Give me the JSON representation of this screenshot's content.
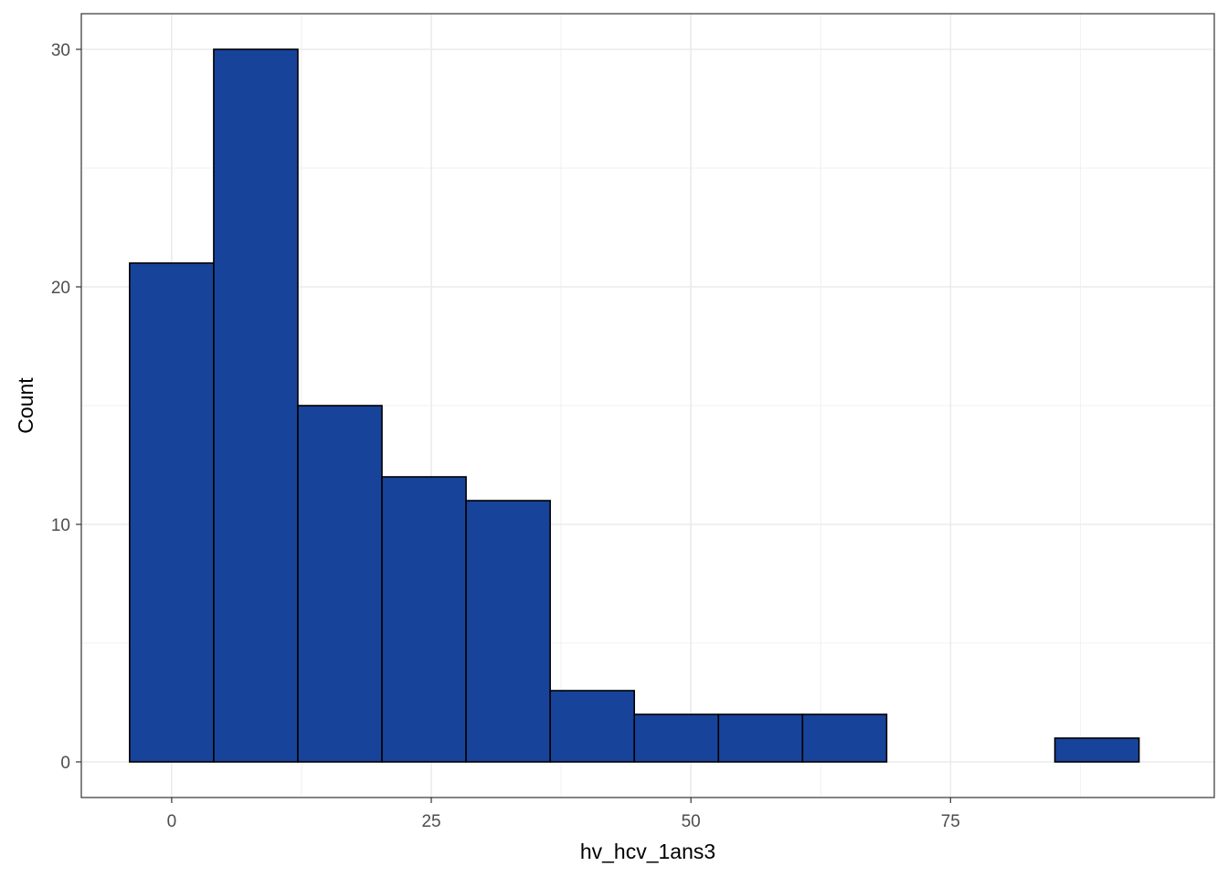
{
  "chart_data": {
    "type": "bar",
    "subtype": "histogram",
    "title": "",
    "xlabel": "hv_hcv_1ans3",
    "ylabel": "Count",
    "xlim": [
      -8.7,
      100.4
    ],
    "ylim": [
      -1.5,
      31.5
    ],
    "x_ticks": [
      0,
      25,
      50,
      75
    ],
    "y_ticks": [
      0,
      10,
      20,
      30
    ],
    "grid": true,
    "theme": "bw",
    "bar_fill": "#18439a",
    "bar_outline": "#000000",
    "bins": [
      {
        "x0": -4.05,
        "x1": 4.05,
        "count": 21
      },
      {
        "x0": 4.05,
        "x1": 12.15,
        "count": 30
      },
      {
        "x0": 12.15,
        "x1": 20.25,
        "count": 15
      },
      {
        "x0": 20.25,
        "x1": 28.35,
        "count": 12
      },
      {
        "x0": 28.35,
        "x1": 36.45,
        "count": 11
      },
      {
        "x0": 36.45,
        "x1": 44.55,
        "count": 3
      },
      {
        "x0": 44.55,
        "x1": 52.65,
        "count": 2
      },
      {
        "x0": 52.65,
        "x1": 60.75,
        "count": 2
      },
      {
        "x0": 60.75,
        "x1": 68.85,
        "count": 2
      },
      {
        "x0": 68.85,
        "x1": 76.95,
        "count": 0
      },
      {
        "x0": 76.95,
        "x1": 85.05,
        "count": 0
      },
      {
        "x0": 85.05,
        "x1": 93.15,
        "count": 1
      }
    ]
  }
}
